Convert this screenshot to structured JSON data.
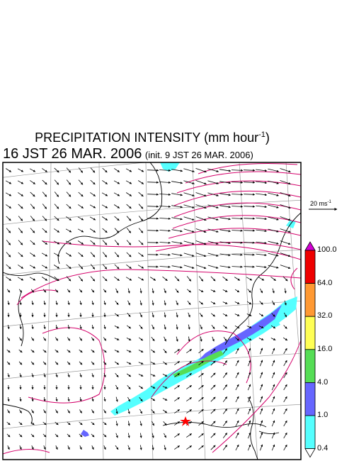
{
  "header": {
    "title_text": "PRECIPITATION INTENSITY (mm hour",
    "title_exp": "-1",
    "title_close": ")",
    "valid_time": "16 JST 26 MAR. 2006",
    "init_time": "(init. 9 JST 26 MAR. 2006)"
  },
  "vector_scale": {
    "text": "20 ms",
    "exp": "-1"
  },
  "colorbar": {
    "levels": [
      "100.0",
      "64.0",
      "32.0",
      "16.0",
      "4.0",
      "1.0",
      "0.4"
    ],
    "colors": [
      "#d400d4",
      "#ee0000",
      "#ff9933",
      "#ffff55",
      "#55dd55",
      "#6666ff",
      "#55ffff",
      "#ffffff"
    ]
  },
  "markers": {
    "station_color": "#ff0000"
  },
  "colors": {
    "isobar": "#d4006a",
    "precip_cyan": "#55ffff",
    "precip_blue": "#6666ff",
    "precip_green": "#55dd55"
  }
}
